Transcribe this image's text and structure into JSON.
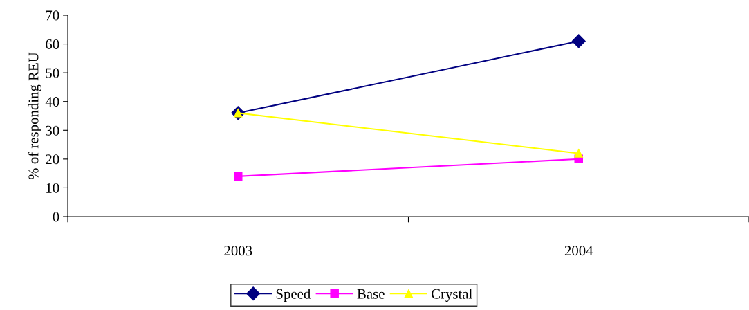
{
  "chart_data": {
    "type": "line",
    "ylabel": "% of responding REU",
    "categories": [
      "2003",
      "2004"
    ],
    "series": [
      {
        "name": "Speed",
        "color": "#000080",
        "values": [
          36,
          61
        ],
        "marker": "diamond"
      },
      {
        "name": "Base",
        "color": "#ff00ff",
        "values": [
          14,
          20
        ],
        "marker": "square"
      },
      {
        "name": "Crystal",
        "color": "#ffff00",
        "values": [
          36,
          22
        ],
        "marker": "triangle"
      }
    ],
    "ylim": [
      0,
      70
    ],
    "yticks": [
      0,
      10,
      20,
      30,
      40,
      50,
      60,
      70
    ],
    "grid": false,
    "legend": "bottom"
  }
}
